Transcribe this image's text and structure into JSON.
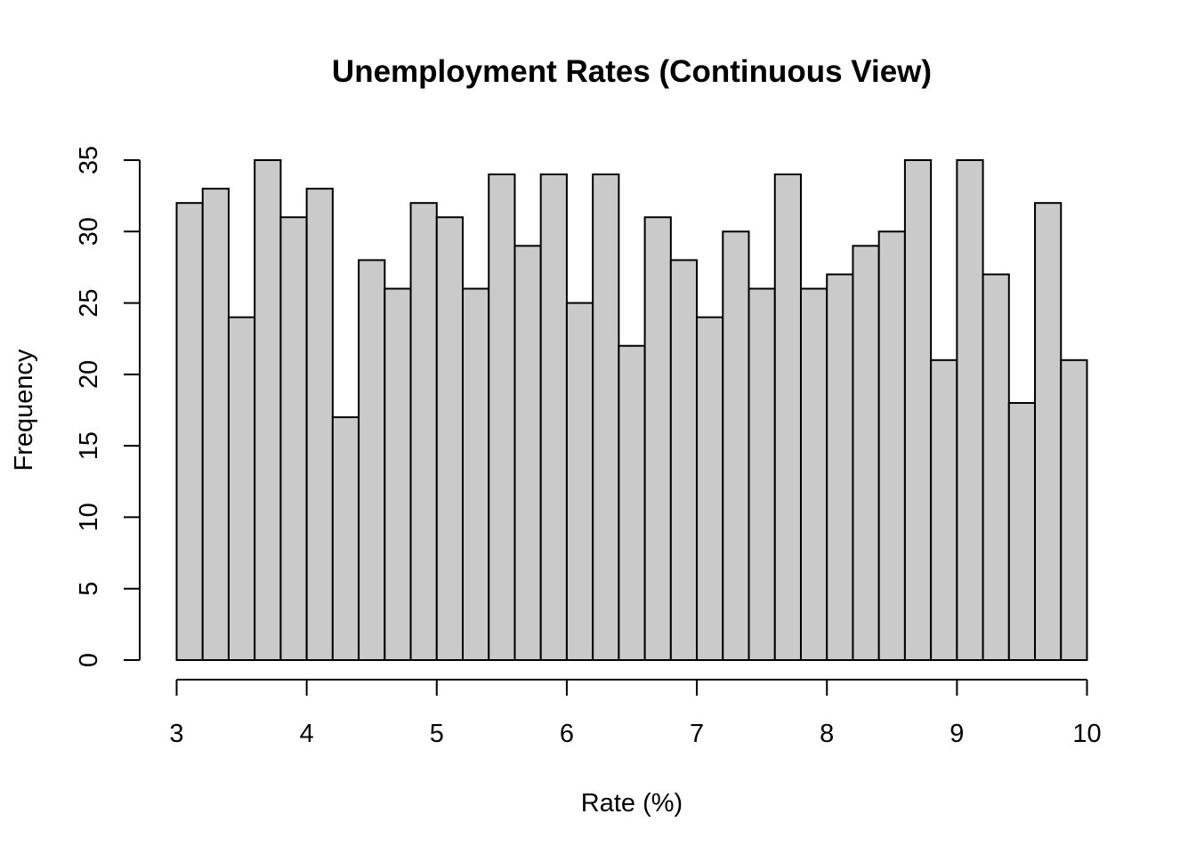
{
  "chart_data": {
    "type": "bar",
    "title": "Unemployment Rates (Continuous View)",
    "xlabel": "Rate (%)",
    "ylabel": "Frequency",
    "bin_edges": [
      3.0,
      3.2,
      3.4,
      3.6,
      3.8,
      4.0,
      4.2,
      4.4,
      4.6,
      4.8,
      5.0,
      5.2,
      5.4,
      5.6,
      5.8,
      6.0,
      6.2,
      6.4,
      6.6,
      6.8,
      7.0,
      7.2,
      7.4,
      7.6,
      7.8,
      8.0,
      8.2,
      8.4,
      8.6,
      8.8,
      9.0,
      9.2,
      9.4,
      9.6,
      9.8,
      10.0
    ],
    "values": [
      32,
      33,
      24,
      35,
      31,
      33,
      17,
      28,
      26,
      32,
      31,
      26,
      34,
      29,
      34,
      25,
      34,
      22,
      31,
      28,
      24,
      30,
      26,
      34,
      26,
      27,
      29,
      30,
      35,
      21,
      35,
      27,
      18,
      32,
      21
    ],
    "xlim": [
      3,
      10
    ],
    "ylim": [
      0,
      35
    ],
    "x_ticks": [
      "3",
      "4",
      "5",
      "6",
      "7",
      "8",
      "9",
      "10"
    ],
    "y_ticks": [
      "0",
      "5",
      "10",
      "15",
      "20",
      "25",
      "30",
      "35"
    ],
    "grid": false,
    "bar_fill": "#cacaca",
    "bar_stroke": "#000000"
  }
}
